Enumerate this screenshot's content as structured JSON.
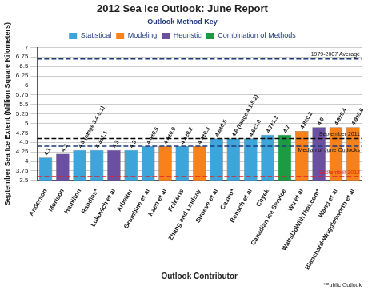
{
  "chart_data": {
    "type": "bar",
    "title": "2012 Sea Ice Outlook: June Report",
    "x_label": "Outlook Contributor",
    "y_label": "September Sea Ice Extent (Million Square Kilometers)",
    "footnote": "*Public Outlook",
    "categories": [
      "Anderson",
      "Morison",
      "Hamilton",
      "Randles*",
      "Lukovich et al",
      "Arbetter",
      "Grumbine et al",
      "Kaen et al",
      "Folkerts",
      "Zhang and Lindsay",
      "Stroeve et al",
      "Castro*",
      "Bensch et al",
      "Chyek",
      "Canadian Ice Service",
      "Wu et al",
      "WattsUpWithThat.com*",
      "Wang et al",
      "Blanchard-Wrigglesworth et al"
    ],
    "values": [
      4.1,
      4.2,
      4.3,
      4.3,
      4.3,
      4.3,
      4.4,
      4.4,
      4.4,
      4.4,
      4.6,
      4.6,
      4.6,
      4.7,
      4.7,
      4.8,
      4.9,
      4.9,
      4.9
    ],
    "value_labels": [
      "4.1",
      "4.2",
      "4.3 (range 3.4-5.1)",
      "4.3±1.1",
      "4.3",
      "4.3",
      "4.4±0.5",
      "4.4±0.9",
      "4.4±0.2",
      "4.4±0.3",
      "4.6±0.5",
      "4.6 (range 4.1-5.2)",
      "4.6±1.0",
      "4.7±1.3",
      "4.7",
      "4.8±0.2",
      "4.9",
      "4.9±0.4",
      "4.9±0.6"
    ],
    "colors": [
      "#3da5d9",
      "#6b4fa0",
      "#3da5d9",
      "#3da5d9",
      "#6b4fa0",
      "#3da5d9",
      "#3da5d9",
      "#f7821b",
      "#3da5d9",
      "#f7821b",
      "#3da5d9",
      "#3da5d9",
      "#3da5d9",
      "#3da5d9",
      "#1d9a44",
      "#f7821b",
      "#6b4fa0",
      "#f7821b",
      "#f7821b"
    ],
    "data_labels": true,
    "legend": "top",
    "method_key": {
      "title": "Outlook Method Key",
      "items": [
        {
          "name": "Statistical",
          "color": "#3da5d9"
        },
        {
          "name": "Modeling",
          "color": "#f7821b"
        },
        {
          "name": "Heuristic",
          "color": "#6b4fa0"
        },
        {
          "name": "Combination of Methods",
          "color": "#1d9a44"
        }
      ]
    },
    "reference_lines": [
      {
        "label": "1979-2007 Average",
        "value": 6.7,
        "color": "#1f3a7a",
        "line_style": "dashed"
      },
      {
        "label": "September 2011",
        "value": 4.6,
        "color": "#000000",
        "line_style": "dashed"
      },
      {
        "label": "Median of June Outlooks",
        "value": 4.4,
        "color": "#1f3a7a",
        "line_style": "dashed"
      },
      {
        "label": "September 2012",
        "value": 3.6,
        "color": "#e02020",
        "line_style": "dashed"
      }
    ],
    "ylim": [
      3.5,
      7
    ],
    "yticks": [
      3.5,
      3.75,
      4,
      4.25,
      4.5,
      4.75,
      5,
      5.25,
      5.5,
      5.75,
      6,
      6.25,
      6.5,
      6.75,
      7
    ],
    "grid": true
  }
}
